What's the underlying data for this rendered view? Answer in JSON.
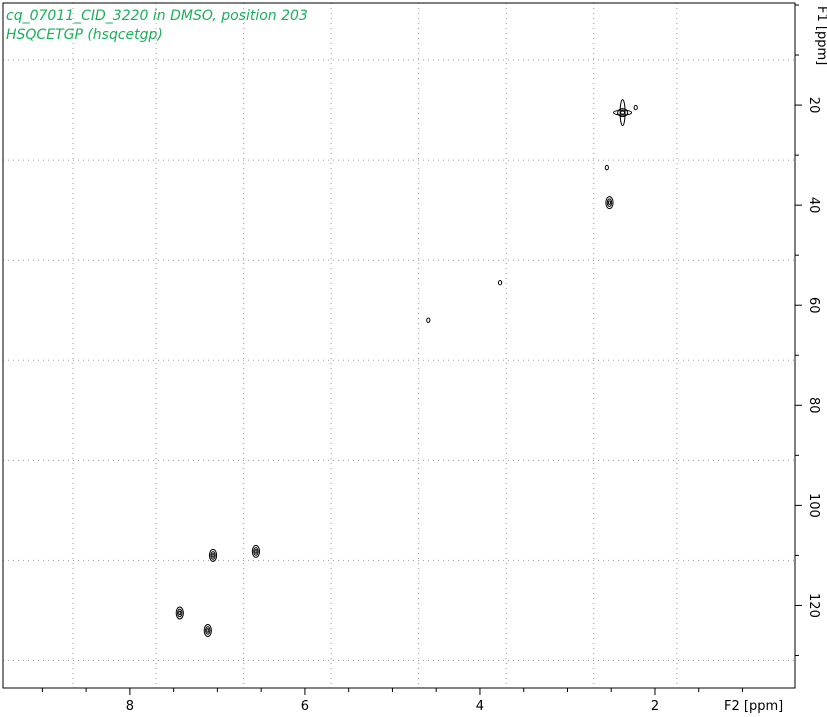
{
  "chart_data": {
    "type": "scatter",
    "title_lines": [
      "cq_07011_CID_3220 in DMSO, position 203",
      "HSQCETGP (hsqcetgp)"
    ],
    "x_axis": {
      "label": "F2 [ppm]",
      "range": [
        9.45,
        0.4
      ],
      "major_ticks": [
        8,
        6,
        4,
        2
      ],
      "grid": [
        8.65,
        7.7,
        6.7,
        5.7,
        4.7,
        3.7,
        2.7,
        1.75
      ]
    },
    "y_axis": {
      "label": "F1 [ppm]",
      "range": [
        -0.4,
        136.5
      ],
      "major_ticks": [
        20,
        40,
        60,
        80,
        100,
        120
      ],
      "grid": [
        11,
        31,
        51,
        71,
        91,
        111,
        131
      ]
    },
    "peaks": [
      {
        "x": 2.37,
        "y": 21.5,
        "shape": "cross"
      },
      {
        "x": 2.22,
        "y": 20.5,
        "shape": "dot"
      },
      {
        "x": 2.55,
        "y": 32.5,
        "shape": "dot"
      },
      {
        "x": 2.52,
        "y": 39.5,
        "shape": "blob"
      },
      {
        "x": 3.77,
        "y": 55.5,
        "shape": "dot"
      },
      {
        "x": 4.59,
        "y": 63.0,
        "shape": "dot"
      },
      {
        "x": 6.56,
        "y": 109.2,
        "shape": "blob"
      },
      {
        "x": 7.05,
        "y": 110.0,
        "shape": "blob"
      },
      {
        "x": 7.43,
        "y": 121.5,
        "shape": "blob"
      },
      {
        "x": 7.11,
        "y": 125.0,
        "shape": "blob"
      }
    ]
  }
}
